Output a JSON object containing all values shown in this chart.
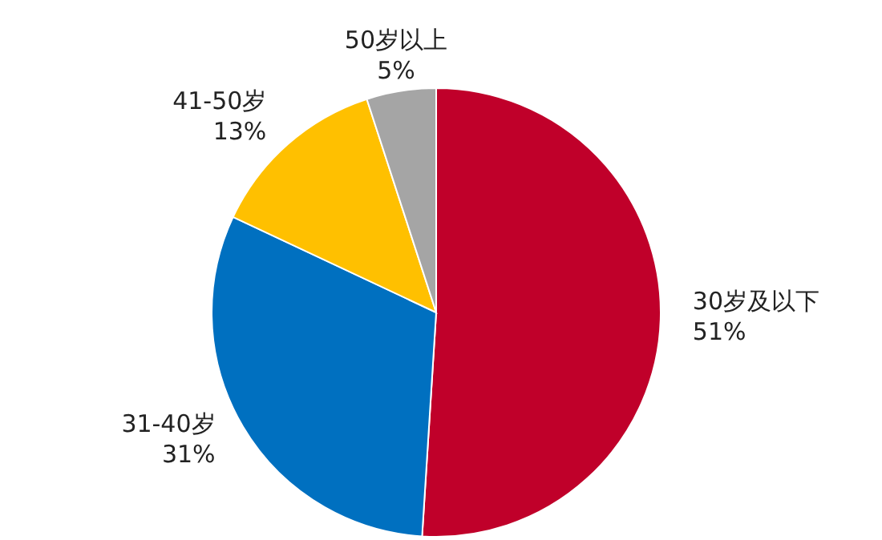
{
  "chart_data": {
    "type": "pie",
    "categories": [
      "30岁及以下",
      "31-40岁",
      "41-50岁",
      "50岁以上"
    ],
    "values": [
      51,
      31,
      13,
      5
    ],
    "colors": [
      "#c0002a",
      "#0070c0",
      "#ffc000",
      "#a5a5a5"
    ],
    "value_labels": [
      "51%",
      "31%",
      "13%",
      "5%"
    ]
  }
}
